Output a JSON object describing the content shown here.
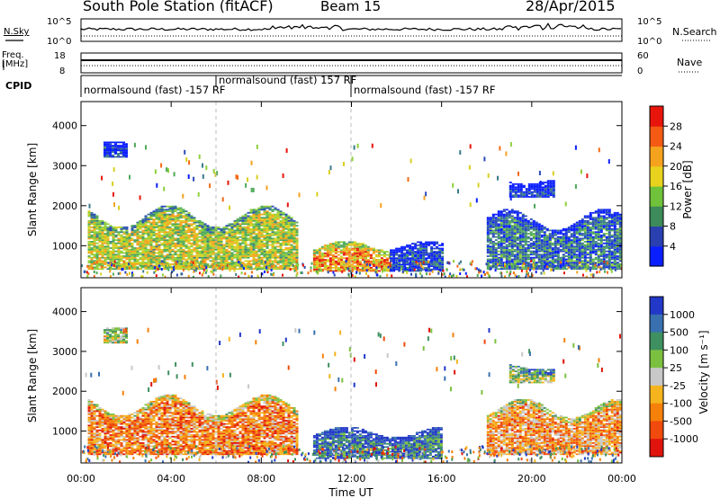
{
  "header": {
    "title": "South Pole Station (fitACF)",
    "beam": "Beam 15",
    "date": "28/Apr/2015"
  },
  "summary_panels": {
    "nsky_label": "N.Sky",
    "nsearch_label": "N.Search",
    "noise_ticks_left": [
      "10^5",
      "10^0"
    ],
    "noise_ticks_right": [
      "10^5",
      "10^0"
    ],
    "freq_label_line1": "Freq.",
    "freq_label_line2": "[MHz]",
    "freq_ticks": [
      "18",
      "8"
    ],
    "nave_label": "Nave",
    "nave_ticks": [
      "60",
      "0"
    ],
    "cpid_label": "CPID",
    "cpid_segments": [
      {
        "text": "normalsound (fast) -157 RF",
        "start_hour": 0.0
      },
      {
        "text": "normalsound (fast) 157 RF",
        "start_hour": 6.0
      },
      {
        "text": "normalsound (fast) -157 RF",
        "start_hour": 12.0
      }
    ]
  },
  "chart_data": [
    {
      "type": "heatmap",
      "panel": "power",
      "ylabel": "Slant Range [km]",
      "y_ticks": [
        1000,
        2000,
        3000,
        4000
      ],
      "ylim": [
        200,
        4600
      ],
      "colorbar_label": "Power [dB]",
      "colorbar_ticks": [
        "4",
        "8",
        "12",
        "16",
        "20",
        "24",
        "28"
      ],
      "colorbar_colors": [
        "#0a1fff",
        "#2a3fb0",
        "#3d8a5a",
        "#6fc23a",
        "#e8d21e",
        "#f5a21e",
        "#f55a14",
        "#e8150c"
      ],
      "colors": [
        "#0a1fff",
        "#2a4ab8",
        "#3a7a8a",
        "#4ea85a",
        "#8ed03a",
        "#d8d020",
        "#f5a21e",
        "#f46a16",
        "#e8150c"
      ],
      "bands": [
        {
          "start": 0.3,
          "end": 9.6,
          "range_low": 400,
          "range_high": 2000,
          "level": 0.55
        },
        {
          "start": 10.3,
          "end": 13.7,
          "range_low": 350,
          "range_high": 1100,
          "level": 0.75
        },
        {
          "start": 13.7,
          "end": 16.0,
          "range_low": 350,
          "range_high": 1100,
          "level": 0.15
        },
        {
          "start": 18.0,
          "end": 24.0,
          "range_low": 400,
          "range_high": 1900,
          "level": 0.25
        },
        {
          "start": 1.0,
          "end": 2.0,
          "range_low": 3200,
          "range_high": 3600,
          "level": 0.12
        },
        {
          "start": 19.0,
          "end": 21.0,
          "range_low": 2200,
          "range_high": 2700,
          "level": 0.08
        }
      ]
    },
    {
      "type": "heatmap",
      "panel": "velocity",
      "xlabel": "Time UT",
      "ylabel": "Slant Range [km]",
      "x_ticks": [
        "00:00",
        "04:00",
        "08:00",
        "12:00",
        "16:00",
        "20:00",
        "00:00"
      ],
      "y_ticks": [
        1000,
        2000,
        3000,
        4000
      ],
      "ylim": [
        200,
        4600
      ],
      "colorbar_label": "Velocity [m s⁻¹]",
      "colorbar_ticks": [
        "1000",
        "500",
        "100",
        "25",
        "-25",
        "-100",
        "-500",
        "-1000"
      ],
      "colorbar_colors": [
        "#2238c8",
        "#3870b0",
        "#3f9060",
        "#7cc040",
        "#c8c8c8",
        "#f5b41e",
        "#f5800a",
        "#f04a0c",
        "#e0140c"
      ],
      "colors": [
        "#2238c8",
        "#3870b0",
        "#3f9060",
        "#7cc040",
        "#c8c8c8",
        "#f5b41e",
        "#f5800a",
        "#f04a0c",
        "#e0140c"
      ],
      "bands": [
        {
          "start": 0.3,
          "end": 9.6,
          "range_low": 400,
          "range_high": 1900,
          "level": 0.72
        },
        {
          "start": 10.3,
          "end": 16.0,
          "range_low": 300,
          "range_high": 1100,
          "level": 0.2
        },
        {
          "start": 18.0,
          "end": 24.0,
          "range_low": 400,
          "range_high": 1800,
          "level": 0.68
        },
        {
          "start": 1.0,
          "end": 2.0,
          "range_low": 3200,
          "range_high": 3600,
          "level": 0.5
        },
        {
          "start": 19.0,
          "end": 21.0,
          "range_low": 2200,
          "range_high": 2700,
          "level": 0.45
        }
      ]
    }
  ]
}
